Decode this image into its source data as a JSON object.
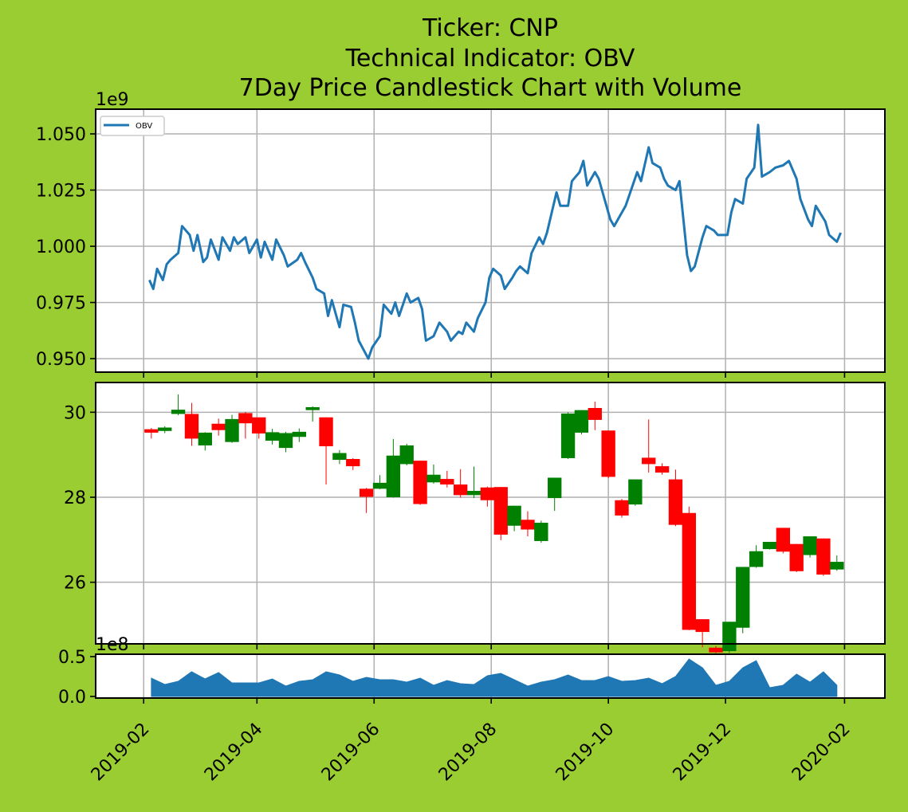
{
  "title_lines": [
    "Ticker: CNP",
    "Technical Indicator: OBV",
    "7Day Price Candlestick Chart with Volume"
  ],
  "colors": {
    "background": "#9acd32",
    "obv_line": "#1f77b4",
    "volume_fill": "#1f77b4",
    "up": "#008000",
    "down": "#ff0000",
    "grid": "#b0b0b0"
  },
  "chart_data": [
    {
      "type": "line",
      "panel": "obv",
      "legend": {
        "label": "OBV",
        "loc": "upper-left"
      },
      "y_offset_label": "1e9",
      "ylim": [
        0.944,
        1.061
      ],
      "yticks": [
        0.95,
        0.975,
        1.0,
        1.025,
        1.05
      ],
      "ytick_labels": [
        "0.950",
        "0.975",
        "1.000",
        "1.025",
        "1.050"
      ],
      "grid": true,
      "series": [
        {
          "name": "OBV",
          "x": [
            "2019-02-04",
            "2019-02-06",
            "2019-02-08",
            "2019-02-11",
            "2019-02-13",
            "2019-02-15",
            "2019-02-19",
            "2019-02-21",
            "2019-02-25",
            "2019-02-27",
            "2019-03-01",
            "2019-03-04",
            "2019-03-06",
            "2019-03-08",
            "2019-03-12",
            "2019-03-14",
            "2019-03-18",
            "2019-03-20",
            "2019-03-22",
            "2019-03-26",
            "2019-03-28",
            "2019-04-01",
            "2019-04-03",
            "2019-04-05",
            "2019-04-09",
            "2019-04-11",
            "2019-04-15",
            "2019-04-17",
            "2019-04-22",
            "2019-04-24",
            "2019-04-26",
            "2019-04-30",
            "2019-05-02",
            "2019-05-06",
            "2019-05-08",
            "2019-05-10",
            "2019-05-14",
            "2019-05-16",
            "2019-05-20",
            "2019-05-22",
            "2019-05-24",
            "2019-05-29",
            "2019-05-31",
            "2019-06-04",
            "2019-06-06",
            "2019-06-10",
            "2019-06-12",
            "2019-06-14",
            "2019-06-18",
            "2019-06-20",
            "2019-06-24",
            "2019-06-26",
            "2019-06-28",
            "2019-07-02",
            "2019-07-05",
            "2019-07-09",
            "2019-07-11",
            "2019-07-15",
            "2019-07-17",
            "2019-07-19",
            "2019-07-23",
            "2019-07-25",
            "2019-07-29",
            "2019-07-31",
            "2019-08-02",
            "2019-08-06",
            "2019-08-08",
            "2019-08-12",
            "2019-08-14",
            "2019-08-16",
            "2019-08-20",
            "2019-08-22",
            "2019-08-26",
            "2019-08-28",
            "2019-08-30",
            "2019-09-04",
            "2019-09-06",
            "2019-09-10",
            "2019-09-12",
            "2019-09-16",
            "2019-09-18",
            "2019-09-20",
            "2019-09-24",
            "2019-09-26",
            "2019-09-30",
            "2019-10-02",
            "2019-10-04",
            "2019-10-08",
            "2019-10-10",
            "2019-10-14",
            "2019-10-16",
            "2019-10-18",
            "2019-10-22",
            "2019-10-24",
            "2019-10-28",
            "2019-10-30",
            "2019-11-01",
            "2019-11-05",
            "2019-11-07",
            "2019-11-11",
            "2019-11-13",
            "2019-11-15",
            "2019-11-19",
            "2019-11-21",
            "2019-11-25",
            "2019-11-27",
            "2019-12-02",
            "2019-12-04",
            "2019-12-06",
            "2019-12-10",
            "2019-12-12",
            "2019-12-16",
            "2019-12-18",
            "2019-12-20",
            "2019-12-24",
            "2019-12-27",
            "2019-12-31",
            "2020-01-03",
            "2020-01-07",
            "2020-01-09",
            "2020-01-13",
            "2020-01-15",
            "2020-01-17",
            "2020-01-22",
            "2020-01-24",
            "2020-01-28",
            "2020-01-30"
          ],
          "values": [
            0.985,
            0.981,
            0.99,
            0.985,
            0.992,
            0.994,
            0.997,
            1.009,
            1.005,
            0.998,
            1.005,
            0.993,
            0.995,
            1.003,
            0.994,
            1.004,
            0.998,
            1.004,
            1.001,
            1.004,
            0.997,
            1.003,
            0.995,
            1.002,
            0.994,
            1.003,
            0.996,
            0.991,
            0.994,
            0.997,
            0.993,
            0.986,
            0.981,
            0.979,
            0.969,
            0.976,
            0.964,
            0.974,
            0.973,
            0.966,
            0.958,
            0.95,
            0.955,
            0.96,
            0.974,
            0.97,
            0.975,
            0.969,
            0.979,
            0.975,
            0.977,
            0.972,
            0.958,
            0.96,
            0.966,
            0.962,
            0.958,
            0.962,
            0.961,
            0.966,
            0.962,
            0.968,
            0.975,
            0.986,
            0.99,
            0.987,
            0.981,
            0.986,
            0.989,
            0.991,
            0.988,
            0.997,
            1.004,
            1.001,
            1.006,
            1.024,
            1.018,
            1.018,
            1.029,
            1.033,
            1.038,
            1.027,
            1.033,
            1.03,
            1.018,
            1.012,
            1.009,
            1.015,
            1.018,
            1.028,
            1.033,
            1.029,
            1.044,
            1.037,
            1.035,
            1.03,
            1.027,
            1.025,
            1.029,
            0.996,
            0.989,
            0.991,
            1.004,
            1.009,
            1.007,
            1.005,
            1.005,
            1.015,
            1.021,
            1.019,
            1.03,
            1.035,
            1.054,
            1.031,
            1.033,
            1.035,
            1.036,
            1.038,
            1.03,
            1.021,
            1.012,
            1.009,
            1.018,
            1.011,
            1.005,
            1.002,
            1.006
          ]
        }
      ]
    },
    {
      "type": "candlestick",
      "panel": "price",
      "period": "7Day",
      "ylim": [
        24.55,
        30.7
      ],
      "yticks": [
        26,
        28,
        30
      ],
      "ytick_labels": [
        "26",
        "28",
        "30"
      ],
      "grid": true,
      "x": [
        "2019-02-05",
        "2019-02-12",
        "2019-02-19",
        "2019-02-26",
        "2019-03-05",
        "2019-03-12",
        "2019-03-19",
        "2019-03-26",
        "2019-04-02",
        "2019-04-09",
        "2019-04-16",
        "2019-04-23",
        "2019-04-30",
        "2019-05-07",
        "2019-05-14",
        "2019-05-21",
        "2019-05-28",
        "2019-06-04",
        "2019-06-11",
        "2019-06-18",
        "2019-06-25",
        "2019-07-02",
        "2019-07-09",
        "2019-07-16",
        "2019-07-23",
        "2019-07-30",
        "2019-08-06",
        "2019-08-13",
        "2019-08-20",
        "2019-08-27",
        "2019-09-03",
        "2019-09-10",
        "2019-09-17",
        "2019-09-24",
        "2019-10-01",
        "2019-10-08",
        "2019-10-15",
        "2019-10-22",
        "2019-10-29",
        "2019-11-05",
        "2019-11-12",
        "2019-11-19",
        "2019-11-26",
        "2019-12-03",
        "2019-12-10",
        "2019-12-17",
        "2019-12-24",
        "2019-12-31",
        "2020-01-07",
        "2020-01-14",
        "2020-01-21",
        "2020-01-28"
      ],
      "open": [
        29.6,
        29.56,
        29.96,
        29.96,
        29.22,
        29.73,
        29.3,
        29.98,
        29.88,
        29.33,
        29.16,
        29.42,
        30.05,
        29.88,
        28.88,
        28.9,
        28.2,
        28.2,
        28.0,
        28.78,
        28.86,
        28.35,
        28.43,
        28.3,
        28.05,
        28.23,
        28.24,
        27.33,
        27.47,
        26.97,
        27.98,
        28.92,
        29.52,
        30.1,
        29.57,
        27.93,
        27.83,
        28.93,
        28.73,
        28.42,
        27.63,
        25.13,
        24.46,
        24.38,
        24.93,
        26.36,
        26.78,
        27.28,
        26.9,
        26.64,
        27.03,
        26.3
      ],
      "close": [
        29.52,
        29.64,
        30.06,
        29.38,
        29.52,
        29.58,
        29.84,
        29.74,
        29.5,
        29.53,
        29.51,
        29.54,
        30.12,
        29.2,
        29.04,
        28.73,
        28.01,
        28.34,
        28.98,
        29.22,
        27.84,
        28.53,
        28.3,
        28.05,
        28.15,
        27.93,
        27.12,
        27.8,
        27.24,
        27.4,
        28.46,
        29.97,
        30.05,
        29.82,
        28.48,
        27.57,
        28.42,
        28.78,
        28.58,
        27.35,
        24.88,
        24.83,
        24.35,
        25.07,
        26.36,
        26.73,
        26.95,
        26.72,
        26.26,
        27.08,
        26.18,
        26.48
      ],
      "high": [
        29.63,
        29.67,
        30.42,
        30.22,
        29.53,
        29.85,
        29.94,
        30.01,
        29.88,
        29.61,
        29.54,
        29.62,
        30.14,
        29.88,
        29.11,
        28.92,
        28.22,
        28.52,
        29.37,
        29.26,
        28.86,
        28.77,
        28.62,
        28.66,
        28.72,
        28.25,
        28.24,
        27.8,
        27.67,
        27.45,
        28.46,
        30.0,
        30.05,
        30.25,
        29.57,
        27.96,
        28.42,
        29.83,
        28.8,
        28.65,
        27.78,
        25.13,
        24.5,
        25.07,
        26.36,
        26.87,
        26.95,
        27.28,
        26.9,
        27.08,
        27.03,
        26.63
      ],
      "low": [
        29.38,
        29.51,
        29.93,
        29.21,
        29.1,
        29.45,
        29.28,
        29.38,
        29.38,
        29.24,
        29.06,
        29.3,
        29.78,
        28.3,
        28.78,
        28.64,
        27.63,
        28.19,
        27.99,
        28.75,
        27.82,
        28.32,
        28.23,
        27.99,
        27.98,
        27.78,
        26.99,
        27.2,
        27.08,
        26.93,
        27.68,
        28.9,
        29.48,
        29.58,
        28.45,
        27.52,
        27.8,
        28.58,
        28.53,
        27.32,
        24.87,
        24.47,
        24.33,
        24.34,
        24.8,
        26.34,
        26.77,
        26.68,
        26.24,
        26.58,
        26.15,
        26.27
      ]
    },
    {
      "type": "area",
      "panel": "volume",
      "y_offset_label": "1e8",
      "ylim": [
        -0.02,
        0.53
      ],
      "yticks": [
        0.0,
        0.5
      ],
      "ytick_labels": [
        "0.0",
        "0.5"
      ],
      "xlabel": "",
      "xlim": [
        "2019-01-07",
        "2020-02-22"
      ],
      "xticks": [
        "2019-02-01",
        "2019-04-01",
        "2019-06-01",
        "2019-08-01",
        "2019-10-01",
        "2019-12-01",
        "2020-02-01"
      ],
      "xtick_labels": [
        "2019-02",
        "2019-04",
        "2019-06",
        "2019-08",
        "2019-10",
        "2019-12",
        "2020-02"
      ],
      "x": [
        "2019-02-05",
        "2019-02-12",
        "2019-02-19",
        "2019-02-26",
        "2019-03-05",
        "2019-03-12",
        "2019-03-19",
        "2019-03-26",
        "2019-04-02",
        "2019-04-09",
        "2019-04-16",
        "2019-04-23",
        "2019-04-30",
        "2019-05-07",
        "2019-05-14",
        "2019-05-21",
        "2019-05-28",
        "2019-06-04",
        "2019-06-11",
        "2019-06-18",
        "2019-06-25",
        "2019-07-02",
        "2019-07-09",
        "2019-07-16",
        "2019-07-23",
        "2019-07-30",
        "2019-08-06",
        "2019-08-13",
        "2019-08-20",
        "2019-08-27",
        "2019-09-03",
        "2019-09-10",
        "2019-09-17",
        "2019-09-24",
        "2019-10-01",
        "2019-10-08",
        "2019-10-15",
        "2019-10-22",
        "2019-10-29",
        "2019-11-05",
        "2019-11-12",
        "2019-11-19",
        "2019-11-26",
        "2019-12-03",
        "2019-12-10",
        "2019-12-17",
        "2019-12-24",
        "2019-12-31",
        "2020-01-07",
        "2020-01-14",
        "2020-01-21",
        "2020-01-28"
      ],
      "values": [
        0.23,
        0.15,
        0.19,
        0.31,
        0.22,
        0.3,
        0.17,
        0.17,
        0.17,
        0.22,
        0.13,
        0.19,
        0.21,
        0.31,
        0.27,
        0.19,
        0.24,
        0.21,
        0.21,
        0.18,
        0.23,
        0.14,
        0.2,
        0.16,
        0.15,
        0.26,
        0.29,
        0.21,
        0.13,
        0.18,
        0.21,
        0.27,
        0.2,
        0.2,
        0.25,
        0.19,
        0.2,
        0.23,
        0.16,
        0.25,
        0.47,
        0.36,
        0.14,
        0.19,
        0.36,
        0.45,
        0.11,
        0.14,
        0.28,
        0.18,
        0.31,
        0.14
      ]
    }
  ]
}
